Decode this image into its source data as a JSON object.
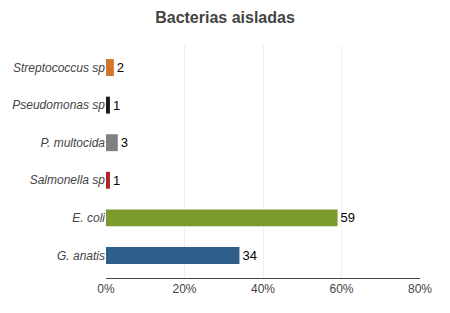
{
  "chart_data": {
    "type": "bar",
    "orientation": "horizontal",
    "title": "Bacterias aisladas",
    "categories": [
      "G. anatis",
      "E. coli",
      "Salmonella sp",
      "P. multocida",
      "Pseudomonas sp",
      "Streptococcus sp"
    ],
    "values": [
      34,
      59,
      1,
      3,
      1,
      2
    ],
    "colors": [
      "#2E5F8A",
      "#7A9A2E",
      "#B22222",
      "#808080",
      "#1A1A1A",
      "#D4762A"
    ],
    "xlim": [
      0,
      80
    ],
    "xticks": [
      {
        "value": 0,
        "label": "0%"
      },
      {
        "value": 20,
        "label": "20%"
      },
      {
        "value": 40,
        "label": "40%"
      },
      {
        "value": 60,
        "label": "60%"
      },
      {
        "value": 80,
        "label": "80%"
      }
    ],
    "grid": true,
    "data_labels": true
  }
}
